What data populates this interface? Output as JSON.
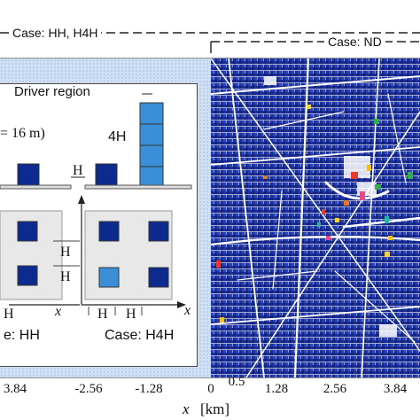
{
  "case_labels": {
    "top_left": "Case: HH, H4H",
    "top_right": "Case: ND",
    "bottom_left": "e: HH",
    "bottom_right": "Case: H4H"
  },
  "inset": {
    "driver_region": "Driver region",
    "spacing_note": "= 16 m)",
    "label_4h": "4H",
    "h_side_label": "H",
    "h_plan_upper": "H",
    "h_plan_lower": "H",
    "h_bottom_left": "H",
    "h_bottom_mid1": "H",
    "h_bottom_mid2": "H",
    "x_axis_left": "x",
    "x_axis_right": "x"
  },
  "axis": {
    "ticks_left": [
      "3.84",
      "-2.56",
      "-1.28"
    ],
    "ticks_right": [
      "0",
      "0.5",
      "1.28",
      "2.56",
      "3.84"
    ],
    "xlabel_var": "x",
    "xlabel_unit": "[km]"
  },
  "colors": {
    "building_dark": "#0d2a8f",
    "building_light": "#3a8fd8",
    "roughness_bg": "#cfe0f4",
    "map_base": "#1a2d96"
  }
}
